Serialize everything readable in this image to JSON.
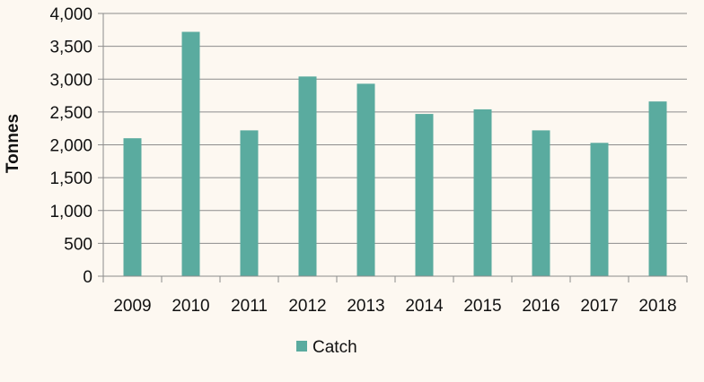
{
  "chart_data": {
    "type": "bar",
    "title": "",
    "xlabel": "",
    "ylabel": "Tonnes",
    "categories": [
      "2009",
      "2010",
      "2011",
      "2012",
      "2013",
      "2014",
      "2015",
      "2016",
      "2017",
      "2018"
    ],
    "series": [
      {
        "name": "Catch",
        "color": "#5aab9f",
        "values": [
          2100,
          3720,
          2220,
          3040,
          2930,
          2470,
          2540,
          2220,
          2030,
          2660
        ]
      }
    ],
    "ylim": [
      0,
      4000
    ],
    "yticks": [
      0,
      500,
      1000,
      1500,
      2000,
      2500,
      3000,
      3500,
      4000
    ],
    "ytick_labels": [
      "0",
      "500",
      "1,000",
      "1,500",
      "2,000",
      "2,500",
      "3,000",
      "3,500",
      "4,000"
    ],
    "grid": true,
    "legend_position": "bottom"
  }
}
